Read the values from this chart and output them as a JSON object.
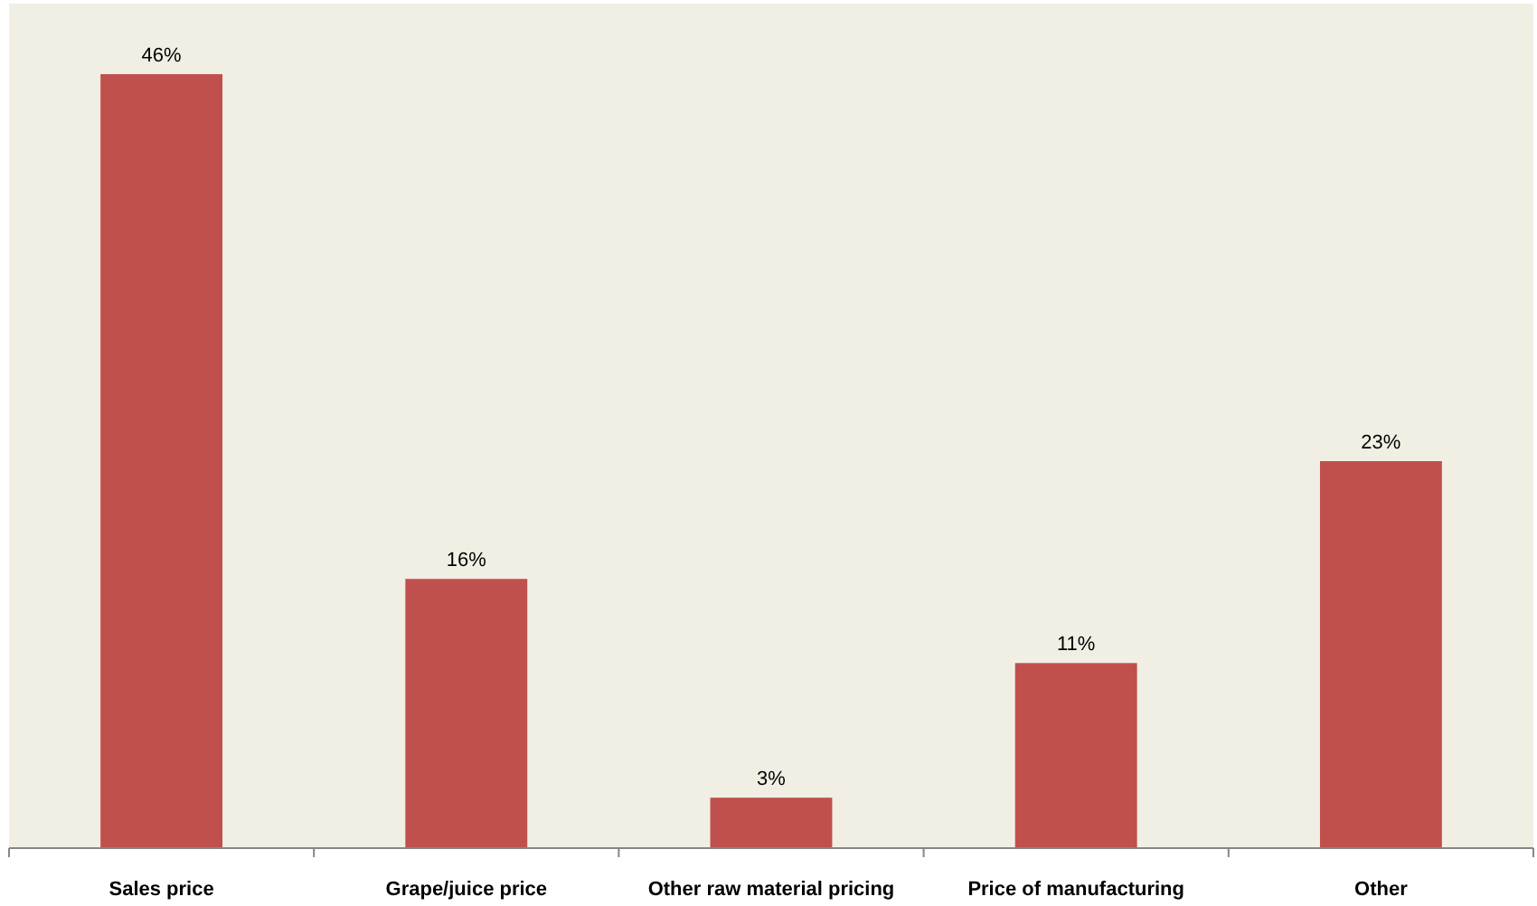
{
  "chart_data": {
    "type": "bar",
    "categories": [
      "Sales price",
      "Grape/juice price",
      "Other raw material pricing",
      "Price of manufacturing",
      "Other"
    ],
    "values": [
      46,
      16,
      3,
      11,
      23
    ],
    "value_labels": [
      "46%",
      "16%",
      "3%",
      "11%",
      "23%"
    ],
    "color": "#c0504d"
  }
}
